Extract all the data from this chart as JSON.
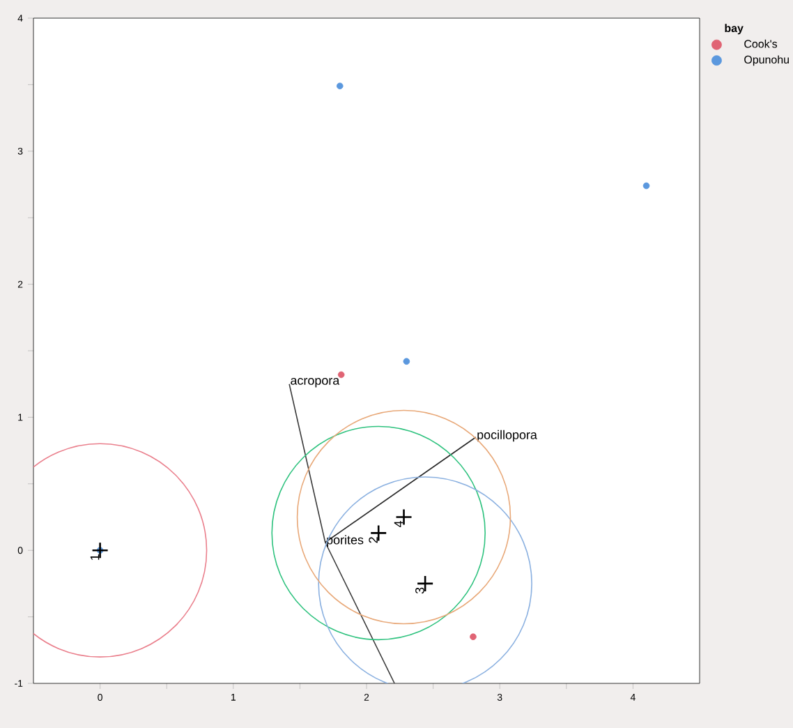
{
  "chart_data": {
    "type": "scatter",
    "legend_title": "bay",
    "legend": "right",
    "grid": false,
    "xlim": [
      -0.5,
      4.5
    ],
    "ylim": [
      -1,
      4
    ],
    "xticks": [
      0,
      {
        "value": 0.5,
        "label": null
      },
      1,
      {
        "value": 1.5,
        "label": null
      },
      2,
      {
        "value": 2.5,
        "label": null
      },
      3,
      {
        "value": 3.5,
        "label": null
      },
      4
    ],
    "yticks": [
      -1,
      {
        "value": -0.5,
        "label": null
      },
      0,
      {
        "value": 0.5,
        "label": null
      },
      1,
      {
        "value": 1.5,
        "label": null
      },
      2,
      {
        "value": 2.5,
        "label": null
      },
      3,
      {
        "value": 3.5,
        "label": null
      },
      4
    ],
    "annotations": [
      {
        "text": "acropora",
        "x": 1.42,
        "y": 1.25
      },
      {
        "text": "pocillopora",
        "x": 2.82,
        "y": 0.85
      },
      {
        "text": "porites",
        "x": 1.69,
        "y": 0.06
      }
    ],
    "series": [
      {
        "name": "Cook's",
        "marker": "circle",
        "color": "#e06474",
        "x": [
          1.81,
          2.8
        ],
        "values": [
          1.32,
          -0.65
        ]
      },
      {
        "name": "Opunohu",
        "marker": "circle",
        "color": "#5b98de",
        "x": [
          1.8,
          4.1,
          2.3,
          0
        ],
        "values": [
          3.49,
          2.74,
          1.42,
          0
        ]
      },
      {
        "name": "1",
        "marker": "cross",
        "color": "#000000",
        "x": [
          0
        ],
        "values": [
          0
        ]
      },
      {
        "name": "2",
        "marker": "cross",
        "color": "#000000",
        "x": [
          2.09
        ],
        "values": [
          0.13
        ]
      },
      {
        "name": "3",
        "marker": "cross",
        "color": "#000000",
        "x": [
          2.44
        ],
        "values": [
          -0.25
        ]
      },
      {
        "name": "4",
        "marker": "cross",
        "color": "#000000",
        "x": [
          2.28
        ],
        "values": [
          0.25
        ]
      },
      {
        "type": "line",
        "marker": "none",
        "color": "#3a3a3a",
        "x": [
          1.42,
          1.69,
          2.21
        ],
        "values": [
          1.25,
          0.06,
          -1
        ]
      },
      {
        "type": "line",
        "marker": "none",
        "color": "#262626",
        "x": [
          1.69,
          2.82
        ],
        "values": [
          0.06,
          0.85
        ]
      }
    ]
  }
}
